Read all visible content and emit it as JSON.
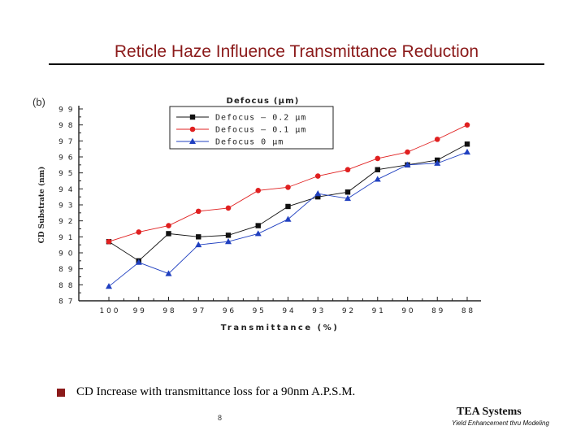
{
  "slide": {
    "title": "Reticle Haze Influence Transmittance Reduction",
    "panel_label": "(b)",
    "bullet": "CD Increase with transmittance loss for a 90nm A.P.S.M.",
    "page_number": "8",
    "company": "TEA Systems",
    "company_tagline": "Yield Enhancement thru Modeling",
    "accent_color": "#8b1a1a"
  },
  "chart_data": {
    "type": "line",
    "legend_title": "Defocus (µm)",
    "legend_placement": "top-left",
    "xlabel": "Transmittance (%)",
    "ylabel": "CD Substrate (nm)",
    "categories": [
      "100",
      "99",
      "98",
      "97",
      "96",
      "95",
      "94",
      "93",
      "92",
      "91",
      "90",
      "89",
      "88"
    ],
    "ylim": [
      87,
      99
    ],
    "yticks": [
      "87",
      "88",
      "89",
      "90",
      "91",
      "92",
      "93",
      "94",
      "95",
      "96",
      "97",
      "98",
      "99"
    ],
    "grid": false,
    "series": [
      {
        "name": "Defocus  – 0.2 µm",
        "color": "#111111",
        "marker": "square",
        "values": [
          90.7,
          89.5,
          91.2,
          91.0,
          91.1,
          91.7,
          92.9,
          93.5,
          93.8,
          95.2,
          95.5,
          95.8,
          96.8
        ]
      },
      {
        "name": "Defocus  – 0.1 µm",
        "color": "#e02020",
        "marker": "circle",
        "values": [
          90.7,
          91.3,
          91.7,
          92.6,
          92.8,
          93.9,
          94.1,
          94.8,
          95.2,
          95.9,
          96.3,
          97.1,
          98.0
        ]
      },
      {
        "name": "Defocus      0  µm",
        "color": "#2040c0",
        "marker": "triangle",
        "values": [
          87.9,
          89.4,
          88.7,
          90.5,
          90.7,
          91.2,
          92.1,
          93.7,
          93.4,
          94.6,
          95.5,
          95.6,
          96.3
        ]
      }
    ]
  }
}
